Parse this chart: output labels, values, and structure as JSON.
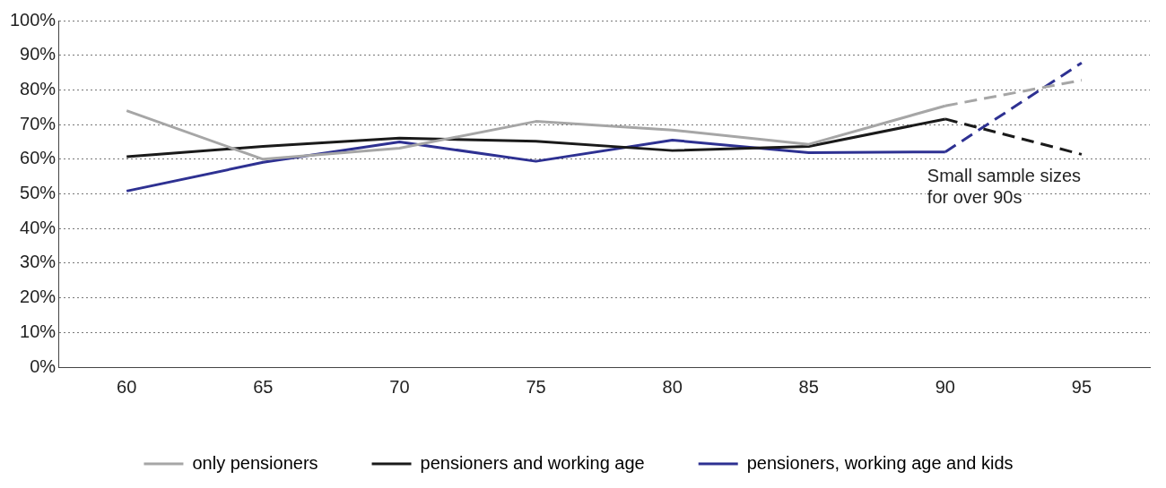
{
  "chart_data": {
    "type": "line",
    "categories": [
      "60",
      "65",
      "70",
      "75",
      "80",
      "85",
      "90",
      "95"
    ],
    "series": [
      {
        "name": "only pensioners",
        "color": "#a6a6a6",
        "values": [
          74.0,
          60.0,
          63.2,
          70.9,
          68.4,
          64.3,
          75.4,
          null
        ]
      },
      {
        "name": "pensioners and working age",
        "color": "#1a1a1a",
        "values": [
          60.7,
          63.7,
          66.1,
          65.2,
          62.5,
          63.7,
          71.6,
          null
        ]
      },
      {
        "name": "pensioners, working age and kids",
        "color": "#2e3192",
        "values": [
          50.8,
          59.1,
          65.0,
          59.4,
          65.5,
          61.9,
          62.1,
          null
        ]
      },
      {
        "color": "#a6a6a6",
        "line_style": "dashed",
        "values": [
          null,
          null,
          null,
          null,
          null,
          null,
          75.4,
          82.8
        ]
      },
      {
        "color": "#1a1a1a",
        "line_style": "dashed",
        "values": [
          null,
          null,
          null,
          null,
          null,
          null,
          71.6,
          61.4
        ]
      },
      {
        "color": "#2e3192",
        "line_style": "dashed",
        "values": [
          null,
          null,
          null,
          null,
          null,
          null,
          62.1,
          87.8
        ]
      }
    ],
    "ylim": [
      0,
      100
    ],
    "yticks": [
      {
        "value": 0,
        "label": "0%"
      },
      {
        "value": 10,
        "label": "10%"
      },
      {
        "value": 20,
        "label": "20%"
      },
      {
        "value": 30,
        "label": "30%"
      },
      {
        "value": 40,
        "label": "40%"
      },
      {
        "value": 50,
        "label": "50%"
      },
      {
        "value": 60,
        "label": "60%"
      },
      {
        "value": 70,
        "label": "70%"
      },
      {
        "value": 80,
        "label": "80%"
      },
      {
        "value": 90,
        "label": "90%"
      },
      {
        "value": 100,
        "label": "100%"
      }
    ],
    "grid": "y",
    "legend": "bottom",
    "marker": "none",
    "line_style": "solid",
    "annotations": [
      "Small sample sizes\nfor over 90s"
    ]
  }
}
